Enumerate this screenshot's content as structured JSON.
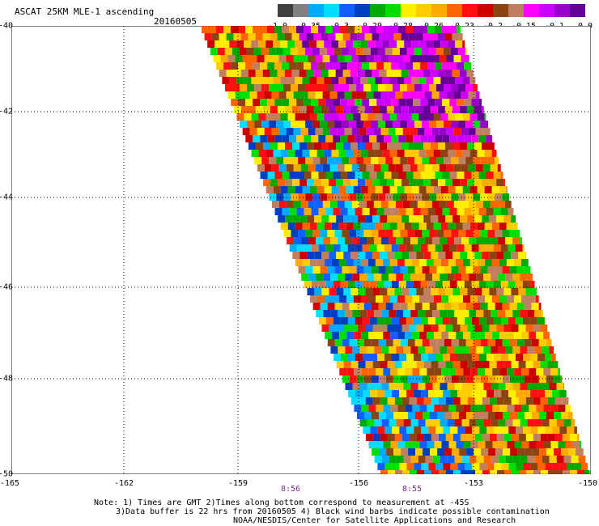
{
  "header": {
    "title": "ASCAT 25KM MLE-1 ascending",
    "date": "20160505"
  },
  "colorbar": {
    "colors": [
      "#404040",
      "#808080",
      "#00aaff",
      "#00ddff",
      "#1060ff",
      "#0040c0",
      "#00aa00",
      "#00dd00",
      "#ffee00",
      "#ffcc00",
      "#ffaa00",
      "#ff6600",
      "#ff1010",
      "#cc0000",
      "#8b4513",
      "#c08060",
      "#ff00ff",
      "#cc00ff",
      "#9900cc",
      "#660099"
    ],
    "labels": [
      "-1.0",
      "-0.35",
      "-0.3",
      "-0.29",
      "-0.28",
      "-0.26",
      "-0.23",
      "-0.2",
      "-0.15",
      "-0.1",
      "0.0"
    ]
  },
  "map": {
    "lat_labels": [
      "-40",
      "-42",
      "-44",
      "-46",
      "-48",
      "-50"
    ],
    "lon_labels": [
      "-165",
      "-162",
      "-159",
      "-156",
      "-153",
      "-150"
    ],
    "pass_times": [
      "8:56",
      "8:55"
    ],
    "lat_range": [
      -50,
      -40
    ],
    "lon_range": [
      -165,
      -150
    ]
  },
  "notes": {
    "line1": "Note: 1) Times are GMT 2)Times along bottom correspond to measurement at -45S",
    "line2": "3)Data buffer is 22 hrs from 20160505 4) Black wind barbs indicate possible contamination",
    "line3": "NOAA/NESDIS/Center for Satellite Applications and Research"
  }
}
